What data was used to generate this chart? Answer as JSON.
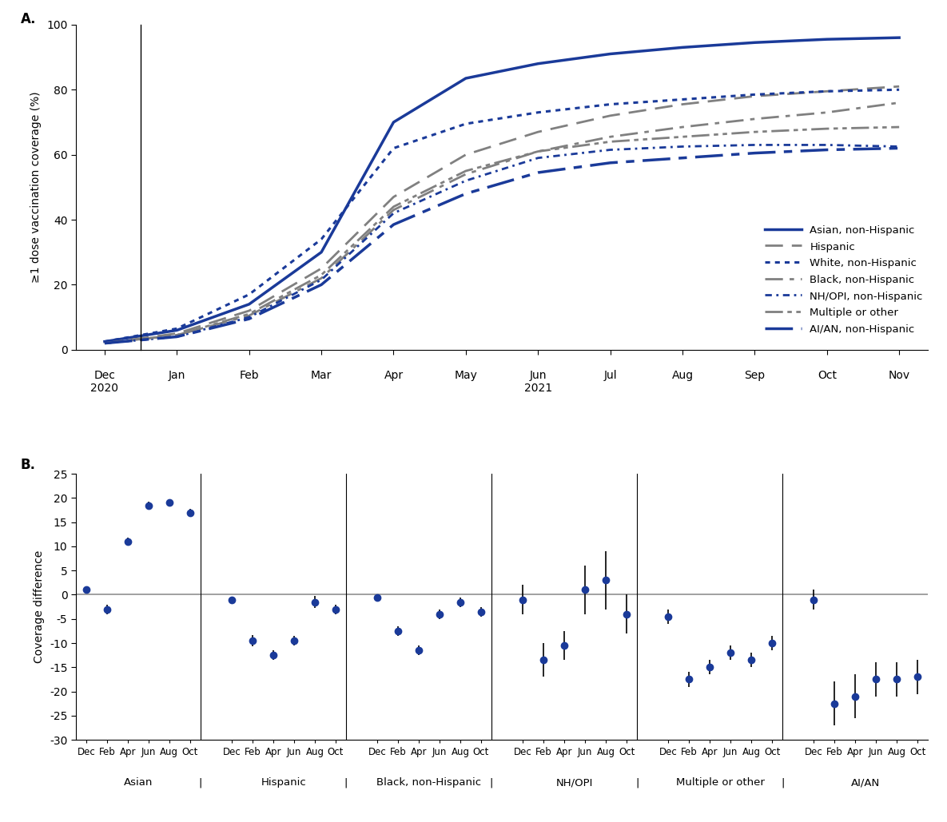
{
  "panel_a": {
    "ylabel": "≥1 dose vaccination coverage (%)",
    "ylim": [
      0,
      100
    ],
    "yticks": [
      0,
      20,
      40,
      60,
      80,
      100
    ],
    "month_labels": [
      "Dec",
      "Jan",
      "Feb",
      "Mar",
      "Apr",
      "May",
      "Jun",
      "Jul",
      "Aug",
      "Sep",
      "Oct",
      "Nov"
    ],
    "series_order": [
      "Asian, non-Hispanic",
      "Hispanic",
      "White, non-Hispanic",
      "Black, non-Hispanic",
      "NH/OPI, non-Hispanic",
      "Multiple or other",
      "AI/AN, non-Hispanic"
    ],
    "series": {
      "Asian, non-Hispanic": {
        "color": "#1a3a99",
        "ls": "solid",
        "lw": 2.5,
        "values": [
          2.5,
          6.0,
          14.0,
          30.0,
          70.0,
          83.5,
          88.0,
          91.0,
          93.0,
          94.5,
          95.5,
          96.0
        ]
      },
      "Hispanic": {
        "color": "#808080",
        "ls": "dashed",
        "lw": 2.0,
        "values": [
          2.0,
          5.0,
          12.0,
          25.0,
          47.0,
          60.0,
          67.0,
          72.0,
          75.5,
          78.0,
          79.5,
          81.0
        ]
      },
      "White, non-Hispanic": {
        "color": "#1a3a99",
        "ls": "dotted",
        "lw": 2.2,
        "values": [
          2.5,
          6.5,
          17.0,
          34.0,
          62.0,
          69.5,
          73.0,
          75.5,
          77.0,
          78.5,
          79.5,
          80.0
        ]
      },
      "Black, non-Hispanic": {
        "color": "#808080",
        "ls": "dashdot",
        "lw": 2.0,
        "values": [
          2.0,
          4.5,
          10.5,
          22.0,
          43.0,
          54.0,
          61.0,
          65.5,
          68.5,
          71.0,
          73.0,
          76.0
        ]
      },
      "NH/OPI, non-Hispanic": {
        "color": "#1a3a99",
        "ls": "NH_OPI",
        "lw": 2.0,
        "values": [
          2.0,
          4.0,
          10.0,
          21.5,
          42.0,
          52.0,
          59.0,
          61.5,
          62.5,
          63.0,
          63.0,
          62.5
        ]
      },
      "Multiple or other": {
        "color": "#808080",
        "ls": "multiple",
        "lw": 2.0,
        "values": [
          2.0,
          4.5,
          11.0,
          23.0,
          44.0,
          55.0,
          61.0,
          64.0,
          65.5,
          67.0,
          68.0,
          68.5
        ]
      },
      "AI/AN, non-Hispanic": {
        "color": "#1a3a99",
        "ls": "AIAN",
        "lw": 2.5,
        "values": [
          2.0,
          4.0,
          9.5,
          20.0,
          38.5,
          48.0,
          54.5,
          57.5,
          59.0,
          60.5,
          61.5,
          62.0
        ]
      }
    }
  },
  "panel_b": {
    "ylabel": "Coverage difference",
    "ylim": [
      -30,
      25
    ],
    "yticks": [
      -30,
      -25,
      -20,
      -15,
      -10,
      -5,
      0,
      5,
      10,
      15,
      20,
      25
    ],
    "groups": [
      "Asian",
      "Hispanic",
      "Black, non-Hispanic",
      "NH/OPI",
      "Multiple or other",
      "AI/AN"
    ],
    "xtick_labels": [
      "Dec",
      "Feb",
      "Apr",
      "Jun",
      "Aug",
      "Oct"
    ],
    "dot_color": "#1a3a99",
    "err_color": "#000000",
    "hline_color": "#909090",
    "data": {
      "Asian": {
        "values": [
          1.0,
          -3.0,
          11.0,
          18.5,
          19.0,
          17.0
        ],
        "err_low": [
          0.5,
          1.0,
          0.8,
          0.8,
          0.8,
          0.8
        ],
        "err_high": [
          0.5,
          1.0,
          0.8,
          0.8,
          0.8,
          0.8
        ]
      },
      "Hispanic": {
        "values": [
          -1.0,
          -9.5,
          -12.5,
          -9.5,
          -1.5,
          -3.0
        ],
        "err_low": [
          0.5,
          1.2,
          1.0,
          1.0,
          1.2,
          1.0
        ],
        "err_high": [
          0.5,
          1.2,
          1.0,
          1.0,
          1.2,
          1.0
        ]
      },
      "Black, non-Hispanic": {
        "values": [
          -0.5,
          -7.5,
          -11.5,
          -4.0,
          -1.5,
          -3.5
        ],
        "err_low": [
          0.5,
          1.0,
          1.0,
          1.0,
          1.0,
          1.0
        ],
        "err_high": [
          0.5,
          1.0,
          1.0,
          1.0,
          1.0,
          1.0
        ]
      },
      "NH/OPI": {
        "values": [
          -1.0,
          -13.5,
          -10.5,
          1.0,
          3.0,
          -4.0
        ],
        "err_low": [
          3.0,
          3.5,
          3.0,
          5.0,
          6.0,
          4.0
        ],
        "err_high": [
          3.0,
          3.5,
          3.0,
          5.0,
          6.0,
          4.0
        ]
      },
      "Multiple or other": {
        "values": [
          -4.5,
          -17.5,
          -15.0,
          -12.0,
          -13.5,
          -10.0
        ],
        "err_low": [
          1.5,
          1.5,
          1.5,
          1.5,
          1.5,
          1.5
        ],
        "err_high": [
          1.5,
          1.5,
          1.5,
          1.5,
          1.5,
          1.5
        ]
      },
      "AI/AN": {
        "values": [
          -1.0,
          -22.5,
          -21.0,
          -17.5,
          -17.5,
          -17.0
        ],
        "err_low": [
          2.0,
          4.5,
          4.5,
          3.5,
          3.5,
          3.5
        ],
        "err_high": [
          2.0,
          4.5,
          4.5,
          3.5,
          3.5,
          3.5
        ]
      }
    }
  },
  "bg_color": "#ffffff",
  "font_family": "Arial",
  "font_size": 10
}
